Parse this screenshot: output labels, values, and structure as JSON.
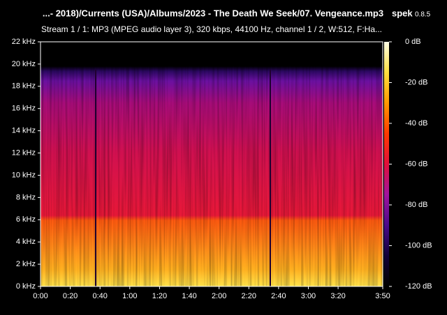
{
  "chart_data": {
    "type": "spectrogram",
    "title": "...- 2018)/Currents (USA)/Albums/2023 - The Death We Seek/07. Vengeance.mp3",
    "app_name": "spek",
    "app_version": "0.8.5",
    "subtitle": "Stream 1 / 1: MP3 (MPEG audio layer 3), 320 kbps, 44100 Hz, channel 1 / 2, W:512, F:Ha...",
    "xlim": [
      0,
      230
    ],
    "xticks": [
      {
        "value": 0,
        "label": "0:00"
      },
      {
        "value": 20,
        "label": "0:20"
      },
      {
        "value": 40,
        "label": "0:40"
      },
      {
        "value": 60,
        "label": "1:00"
      },
      {
        "value": 80,
        "label": "1:20"
      },
      {
        "value": 100,
        "label": "1:40"
      },
      {
        "value": 120,
        "label": "2:00"
      },
      {
        "value": 140,
        "label": "2:20"
      },
      {
        "value": 160,
        "label": "2:40"
      },
      {
        "value": 180,
        "label": "3:00"
      },
      {
        "value": 200,
        "label": "3:20"
      },
      {
        "value": 230,
        "label": "3:50"
      }
    ],
    "ylim": [
      0,
      22
    ],
    "yticks": [
      {
        "value": 0,
        "label": "0 kHz"
      },
      {
        "value": 2,
        "label": "2 kHz"
      },
      {
        "value": 4,
        "label": "4 kHz"
      },
      {
        "value": 6,
        "label": "6 kHz"
      },
      {
        "value": 8,
        "label": "8 kHz"
      },
      {
        "value": 10,
        "label": "10 kHz"
      },
      {
        "value": 12,
        "label": "12 kHz"
      },
      {
        "value": 14,
        "label": "14 kHz"
      },
      {
        "value": 16,
        "label": "16 kHz"
      },
      {
        "value": 18,
        "label": "18 kHz"
      },
      {
        "value": 20,
        "label": "20 kHz"
      },
      {
        "value": 22,
        "label": "22 kHz"
      }
    ],
    "colorbar": {
      "lim": [
        -120,
        0
      ],
      "ticks": [
        {
          "value": 0,
          "label": "0 dB"
        },
        {
          "value": -20,
          "label": "-20 dB"
        },
        {
          "value": -40,
          "label": "-40 dB"
        },
        {
          "value": -60,
          "label": "-60 dB"
        },
        {
          "value": -80,
          "label": "-80 dB"
        },
        {
          "value": -100,
          "label": "-100 dB"
        },
        {
          "value": -120,
          "label": "-120 dB"
        }
      ],
      "colormap": [
        "#000000",
        "#10003a",
        "#4a0a8a",
        "#a0149e",
        "#e0103a",
        "#ff3a00",
        "#ff9a00",
        "#ffe040",
        "#ffffe8"
      ]
    }
  }
}
